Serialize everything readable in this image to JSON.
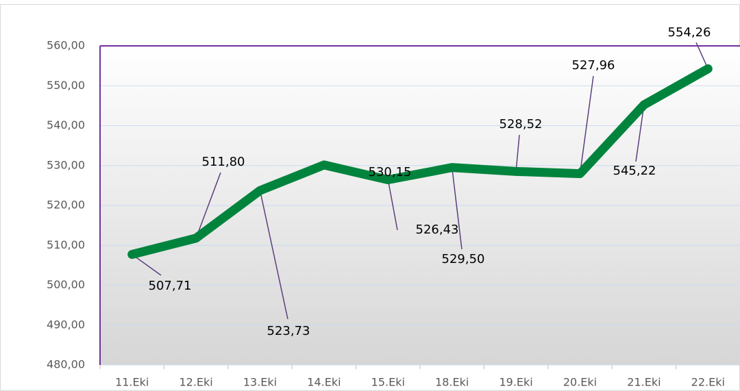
{
  "chart_data": {
    "type": "line",
    "categories": [
      "11.Eki",
      "12.Eki",
      "13.Eki",
      "14.Eki",
      "15.Eki",
      "18.Eki",
      "19.Eki",
      "20.Eki",
      "21.Eki",
      "22.Eki"
    ],
    "series": [
      {
        "color": "#00843d",
        "values": [
          507.71,
          511.8,
          523.73,
          530.15,
          526.43,
          529.5,
          528.52,
          527.96,
          545.22,
          554.26
        ],
        "value_labels": [
          "507,71",
          "511,80",
          "523,73",
          "530,15",
          "526,43",
          "529,50",
          "528,52",
          "527,96",
          "545,22",
          "554,26"
        ]
      }
    ],
    "ylim": [
      480,
      560
    ],
    "yticks": [
      {
        "value": 480,
        "label": "480,00"
      },
      {
        "value": 490,
        "label": "490,00"
      },
      {
        "value": 500,
        "label": "500,00"
      },
      {
        "value": 510,
        "label": "510,00"
      },
      {
        "value": 520,
        "label": "520,00"
      },
      {
        "value": 530,
        "label": "530,00"
      },
      {
        "value": 540,
        "label": "540,00"
      },
      {
        "value": 550,
        "label": "550,00"
      },
      {
        "value": 560,
        "label": "560,00"
      }
    ],
    "grid": true
  }
}
